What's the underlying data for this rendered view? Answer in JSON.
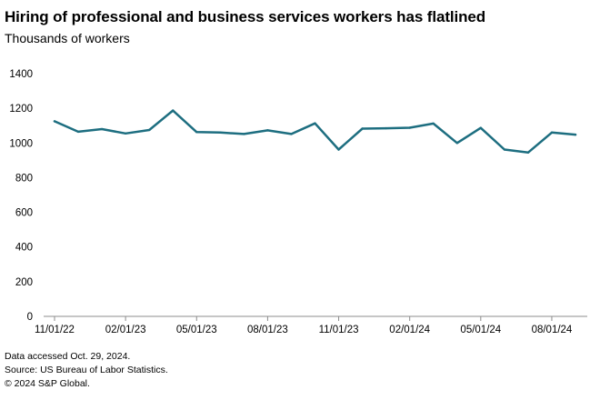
{
  "title": "Hiring of professional and business services workers has flatlined",
  "subtitle": "Thousands of workers",
  "footer": {
    "line1": "Data accessed Oct. 29, 2024.",
    "line2": "Source: US Bureau of Labor Statistics.",
    "line3": "© 2024 S&P Global."
  },
  "colors": {
    "line": "#1d6e80",
    "axis": "#8c8c8c"
  },
  "chart_data": {
    "type": "line",
    "title": "Hiring of professional and business services workers has flatlined",
    "subtitle": "Thousands of workers",
    "xlabel": "",
    "ylabel": "",
    "ylim": [
      0,
      1400
    ],
    "yticks": [
      0,
      200,
      400,
      600,
      800,
      1000,
      1200,
      1400
    ],
    "grid": false,
    "x": [
      "11/01/22",
      "12/01/22",
      "01/01/23",
      "02/01/23",
      "03/01/23",
      "04/01/23",
      "05/01/23",
      "06/01/23",
      "07/01/23",
      "08/01/23",
      "09/01/23",
      "10/01/23",
      "11/01/23",
      "12/01/23",
      "01/01/24",
      "02/01/24",
      "03/01/24",
      "04/01/24",
      "05/01/24",
      "06/01/24",
      "07/01/24",
      "08/01/24",
      "09/01/24"
    ],
    "xtick_labels": [
      "11/01/22",
      "02/01/23",
      "05/01/23",
      "08/01/23",
      "11/01/23",
      "02/01/24",
      "05/01/24",
      "08/01/24"
    ],
    "series": [
      {
        "values": [
          1125,
          1065,
          1080,
          1055,
          1075,
          1187,
          1063,
          1060,
          1052,
          1073,
          1052,
          1113,
          962,
          1083,
          1085,
          1088,
          1112,
          1000,
          1087,
          962,
          945,
          1060,
          1048
        ]
      }
    ]
  }
}
